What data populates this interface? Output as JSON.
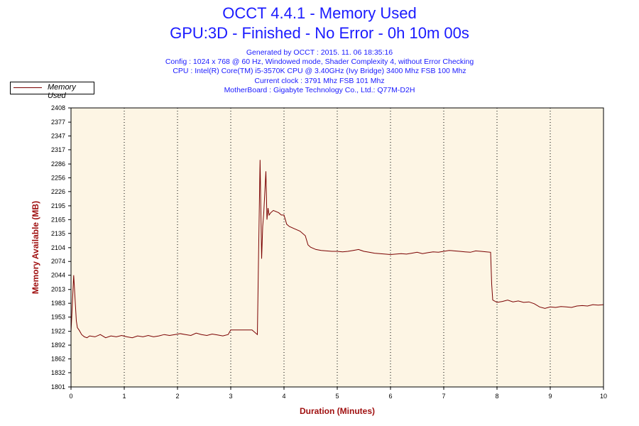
{
  "window": {
    "title_line1": "OCCT 4.4.1 - Memory Used",
    "title_line2": "GPU:3D - Finished - No Error - 0h 10m 00s",
    "info_lines": [
      "Generated by OCCT : 2015. 11. 06 18:35:16",
      "Config : 1024 x 768 @ 60 Hz, Windowed mode, Shader Complexity 4, without Error Checking",
      "CPU : Intel(R) Core(TM) i5-3570K CPU @ 3.40GHz (Ivy Bridge) 3400 Mhz FSB 100 Mhz",
      "Current clock : 3791 Mhz FSB 101 Mhz",
      "MotherBoard : Gigabyte Technology Co., Ltd.: Q77M-D2H"
    ]
  },
  "colors": {
    "title": "#1a1aff",
    "plot_background": "#fdf5e4",
    "series_line": "#7a0000",
    "axis_title": "#a01010"
  },
  "chart_data": {
    "type": "line",
    "xlabel": "Duration (Minutes)",
    "ylabel": "Memory Available (MB)",
    "xlim": [
      0,
      10
    ],
    "ylim": [
      1801,
      2408
    ],
    "x_ticks": [
      0,
      1,
      2,
      3,
      4,
      5,
      6,
      7,
      8,
      9,
      10
    ],
    "y_ticks": [
      1801,
      1832,
      1862,
      1892,
      1922,
      1953,
      1983,
      2013,
      2044,
      2074,
      2104,
      2135,
      2165,
      2195,
      2226,
      2256,
      2286,
      2317,
      2347,
      2377,
      2408
    ],
    "grid": "vertical dotted",
    "legend_position": "top-left",
    "series": [
      {
        "name": "Memory Used",
        "x": [
          0,
          0.05,
          0.1,
          0.12,
          0.15,
          0.2,
          0.25,
          0.3,
          0.35,
          0.45,
          0.55,
          0.65,
          0.75,
          0.85,
          0.95,
          1.05,
          1.15,
          1.25,
          1.35,
          1.45,
          1.55,
          1.65,
          1.75,
          1.85,
          1.95,
          2.05,
          2.15,
          2.25,
          2.35,
          2.45,
          2.55,
          2.65,
          2.75,
          2.85,
          2.95,
          3.0,
          3.2,
          3.4,
          3.5,
          3.52,
          3.55,
          3.58,
          3.6,
          3.62,
          3.66,
          3.68,
          3.7,
          3.72,
          3.75,
          3.8,
          3.9,
          3.95,
          4.0,
          4.05,
          4.1,
          4.2,
          4.3,
          4.4,
          4.45,
          4.5,
          4.6,
          4.7,
          4.8,
          4.9,
          5.0,
          5.1,
          5.2,
          5.3,
          5.4,
          5.5,
          5.6,
          5.7,
          5.8,
          5.9,
          6.0,
          6.1,
          6.2,
          6.3,
          6.4,
          6.5,
          6.6,
          6.7,
          6.8,
          6.9,
          7.0,
          7.1,
          7.2,
          7.3,
          7.4,
          7.5,
          7.6,
          7.7,
          7.8,
          7.88,
          7.9,
          7.92,
          8.0,
          8.1,
          8.2,
          8.3,
          8.4,
          8.5,
          8.6,
          8.7,
          8.8,
          8.9,
          9.0,
          9.1,
          9.2,
          9.3,
          9.4,
          9.5,
          9.6,
          9.7,
          9.8,
          9.9,
          10.0
        ],
        "y": [
          1920,
          2044,
          1945,
          1930,
          1925,
          1915,
          1910,
          1908,
          1912,
          1910,
          1915,
          1908,
          1912,
          1910,
          1913,
          1910,
          1908,
          1912,
          1910,
          1913,
          1910,
          1912,
          1915,
          1913,
          1915,
          1917,
          1915,
          1913,
          1918,
          1915,
          1913,
          1916,
          1914,
          1912,
          1915,
          1925,
          1925,
          1925,
          1915,
          2070,
          2295,
          2080,
          2150,
          2180,
          2270,
          2165,
          2190,
          2175,
          2180,
          2185,
          2180,
          2175,
          2175,
          2155,
          2150,
          2145,
          2140,
          2130,
          2110,
          2105,
          2100,
          2098,
          2097,
          2096,
          2096,
          2095,
          2096,
          2098,
          2100,
          2096,
          2094,
          2092,
          2091,
          2090,
          2089,
          2090,
          2091,
          2090,
          2092,
          2094,
          2091,
          2093,
          2095,
          2094,
          2096,
          2098,
          2097,
          2096,
          2095,
          2094,
          2097,
          2096,
          2095,
          2094,
          2025,
          1990,
          1985,
          1987,
          1990,
          1986,
          1988,
          1985,
          1986,
          1982,
          1975,
          1972,
          1975,
          1974,
          1976,
          1975,
          1974,
          1977,
          1978,
          1977,
          1980,
          1979,
          1980
        ]
      }
    ]
  }
}
